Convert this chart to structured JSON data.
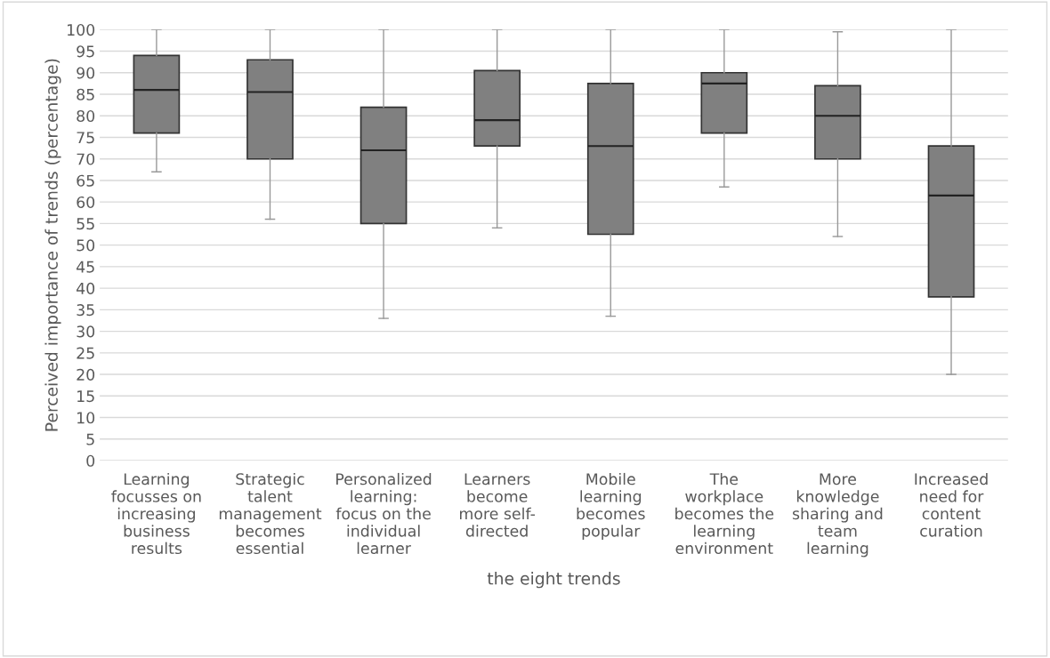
{
  "chart_data": {
    "type": "box",
    "xlabel": "the eight trends",
    "ylabel": "Perceived importance of trends (percentage)",
    "categories": [
      "Learning\nfocusses on\nincreasing\nbusiness\nresults",
      "Strategic\ntalent\nmanagement\nbecomes\nessential",
      "Personalized\nlearning:\nfocus on the\nindividual\nlearner",
      "Learners\nbecome\nmore self-\ndirected",
      "Mobile\nlearning\nbecomes\npopular",
      "The\nworkplace\nbecomes the\nlearning\nenvironment",
      "More\nknowledge\nsharing and\nteam\nlearning",
      "Increased\nneed for\ncontent\ncuration"
    ],
    "boxes": [
      {
        "low": 67,
        "q1": 76,
        "median": 86,
        "q3": 94,
        "high": 100
      },
      {
        "low": 56,
        "q1": 70,
        "median": 85.5,
        "q3": 93,
        "high": 100
      },
      {
        "low": 33,
        "q1": 55,
        "median": 72,
        "q3": 82,
        "high": 100
      },
      {
        "low": 54,
        "q1": 73,
        "median": 79,
        "q3": 90.5,
        "high": 100
      },
      {
        "low": 33.5,
        "q1": 52.5,
        "median": 73,
        "q3": 87.5,
        "high": 100
      },
      {
        "low": 63.5,
        "q1": 76,
        "median": 87.5,
        "q3": 90,
        "high": 100
      },
      {
        "low": 52,
        "q1": 70,
        "median": 80,
        "q3": 87,
        "high": 99.5
      },
      {
        "low": 20,
        "q1": 38,
        "median": 61.5,
        "q3": 73,
        "high": 100
      }
    ],
    "color": "#808080",
    "ylim": [
      0,
      100
    ],
    "yticks": [
      0,
      5,
      10,
      15,
      20,
      25,
      30,
      35,
      40,
      45,
      50,
      55,
      60,
      65,
      70,
      75,
      80,
      85,
      90,
      95,
      100
    ],
    "grid": "y"
  }
}
